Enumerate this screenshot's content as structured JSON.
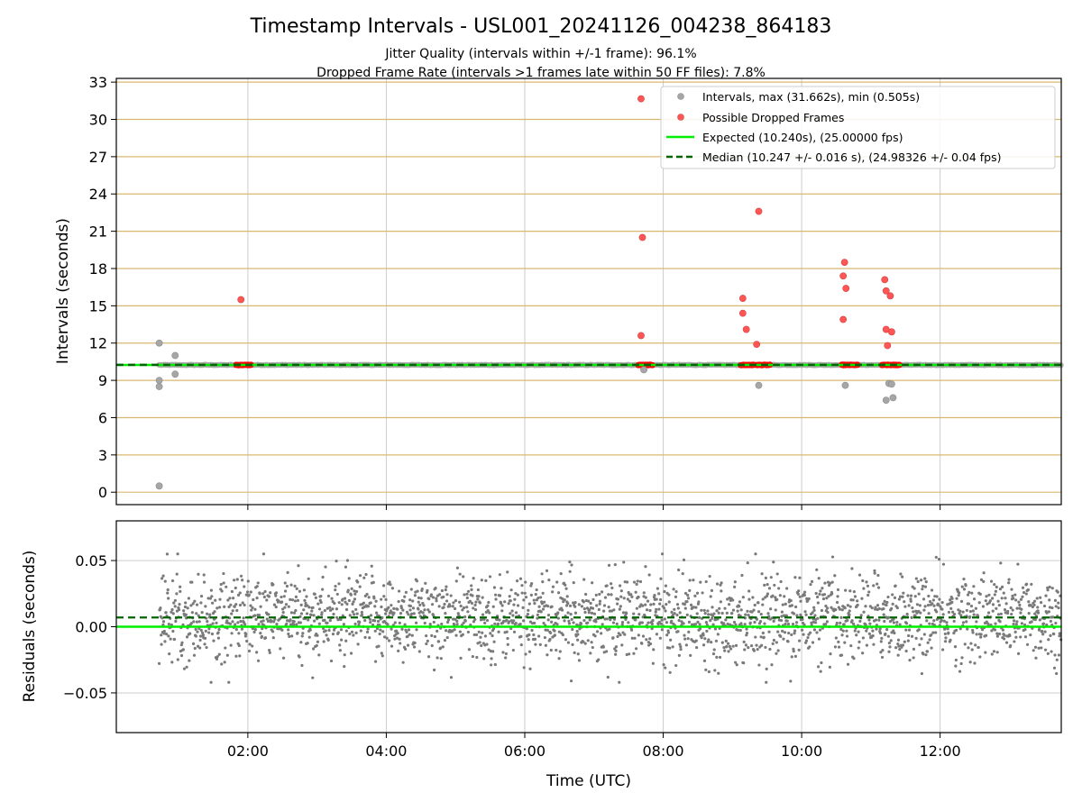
{
  "header": {
    "title": "Timestamp Intervals - USL001_20241126_004238_864183",
    "subtitle_1": "Jitter Quality (intervals within +/-1 frame): 96.1%",
    "subtitle_2": "Dropped Frame Rate (intervals >1 frames late within 50 FF files): 7.8%"
  },
  "chart_data": [
    {
      "type": "scatter",
      "panel": "intervals",
      "ylabel": "Intervals (seconds)",
      "xlim": [
        0.1,
        13.75
      ],
      "ylim": [
        -1.0,
        33.3
      ],
      "yticks": [
        0,
        3,
        6,
        9,
        12,
        15,
        18,
        21,
        24,
        27,
        30,
        33
      ],
      "xticks": [
        2,
        4,
        6,
        8,
        10,
        12
      ],
      "xtick_labels": [
        "02:00",
        "04:00",
        "06:00",
        "08:00",
        "10:00",
        "12:00"
      ],
      "grid": true,
      "legend_position": "top-right",
      "legend": {
        "intervals": "Intervals, max (31.662s), min (0.505s)",
        "dropped": "Possible Dropped Frames",
        "expected": "Expected (10.240s), (25.00000 fps)",
        "median": "Median (10.247 +/- 0.016 s), (24.98326 +/- 0.04 fps)"
      },
      "expected": 10.24,
      "median": 10.247,
      "baseline_range": [
        0.72,
        13.75
      ],
      "intervals_outliers": [
        [
          0.72,
          12.0
        ],
        [
          0.72,
          9.0
        ],
        [
          0.72,
          8.5
        ],
        [
          0.72,
          0.5
        ],
        [
          0.95,
          11.0
        ],
        [
          0.95,
          9.5
        ],
        [
          7.72,
          9.85
        ],
        [
          9.38,
          8.6
        ],
        [
          10.63,
          8.6
        ],
        [
          11.22,
          7.4
        ],
        [
          11.26,
          8.75
        ],
        [
          11.3,
          8.7
        ],
        [
          11.32,
          7.6
        ]
      ],
      "dropped_frames": [
        [
          1.9,
          15.5
        ],
        [
          7.68,
          31.66
        ],
        [
          7.7,
          20.5
        ],
        [
          7.68,
          12.6
        ],
        [
          9.15,
          15.6
        ],
        [
          9.15,
          14.4
        ],
        [
          9.2,
          13.1
        ],
        [
          9.38,
          22.6
        ],
        [
          9.35,
          11.9
        ],
        [
          10.62,
          18.5
        ],
        [
          10.6,
          17.4
        ],
        [
          10.64,
          16.4
        ],
        [
          10.6,
          13.9
        ],
        [
          11.2,
          17.1
        ],
        [
          11.22,
          16.2
        ],
        [
          11.28,
          15.8
        ],
        [
          11.22,
          13.1
        ],
        [
          11.3,
          12.9
        ],
        [
          11.24,
          11.8
        ]
      ],
      "dropped_clusters": [
        [
          1.83,
          2.05
        ],
        [
          7.64,
          7.85
        ],
        [
          9.12,
          9.32
        ],
        [
          9.35,
          9.55
        ],
        [
          10.58,
          10.82
        ],
        [
          11.16,
          11.42
        ]
      ]
    },
    {
      "type": "scatter",
      "panel": "residuals",
      "ylabel": "Residuals (seconds)",
      "xlabel": "Time (UTC)",
      "xlim": [
        0.1,
        13.75
      ],
      "ylim": [
        -0.08,
        0.08
      ],
      "yticks": [
        -0.05,
        0.0,
        0.05
      ],
      "ytick_labels": [
        "−0.05",
        "0.00",
        "0.05"
      ],
      "xticks": [
        2,
        4,
        6,
        8,
        10,
        12
      ],
      "xtick_labels": [
        "02:00",
        "04:00",
        "06:00",
        "08:00",
        "10:00",
        "12:00"
      ],
      "grid": true,
      "expected": 0.0,
      "median": 0.007,
      "residual_range": [
        0.72,
        13.75
      ],
      "residual_mean": 0.007,
      "residual_spread": 0.016,
      "residual_count": 2400
    }
  ],
  "colors": {
    "intervals": "#a6a6a6",
    "dropped": "#ff5555",
    "dropped_cluster": "#ff0000",
    "expected": "#00ee00",
    "median": "#006400",
    "ygrid_top": "#d8b870",
    "grid": "#cccccc",
    "residual_points": "#7a7a7a"
  }
}
